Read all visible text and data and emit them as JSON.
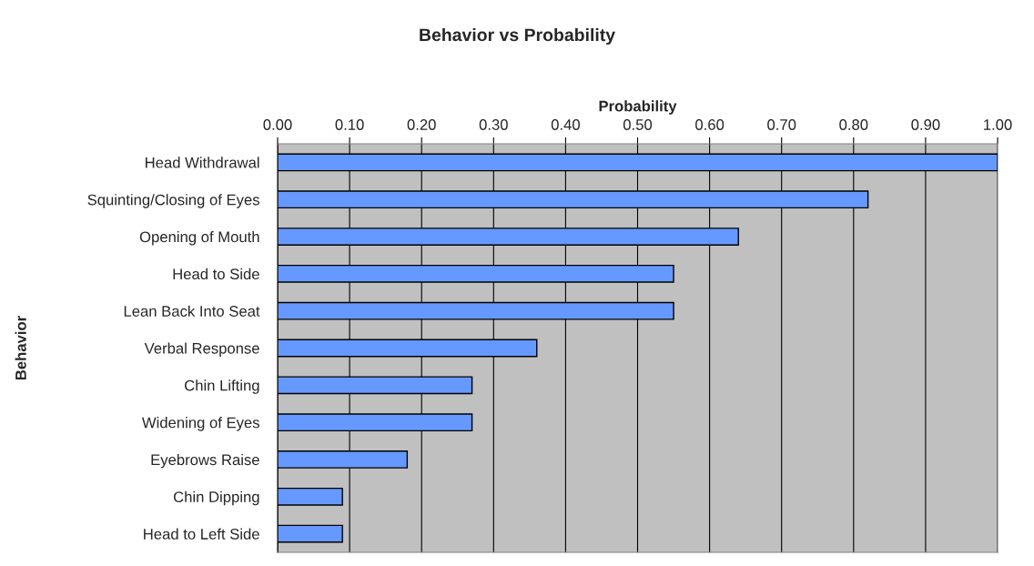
{
  "chart_data": {
    "type": "bar",
    "orientation": "horizontal",
    "title": "Behavior vs Probability",
    "xlabel": "Probability",
    "ylabel": "Behavior",
    "categories": [
      "Head Withdrawal",
      "Squinting/Closing of Eyes",
      "Opening of Mouth",
      "Head to Side",
      "Lean Back Into Seat",
      "Verbal Response",
      "Chin Lifting",
      "Widening of Eyes",
      "Eyebrows Raise",
      "Chin Dipping",
      "Head to Left Side"
    ],
    "values": [
      1.0,
      0.82,
      0.64,
      0.55,
      0.55,
      0.36,
      0.27,
      0.27,
      0.18,
      0.09,
      0.09
    ],
    "color": "#6699ff",
    "xlim": [
      0,
      1
    ],
    "xticks": [
      {
        "value": 0,
        "label": "0.00"
      },
      {
        "value": 0.1,
        "label": "0.10"
      },
      {
        "value": 0.2,
        "label": "0.20"
      },
      {
        "value": 0.3,
        "label": "0.30"
      },
      {
        "value": 0.4,
        "label": "0.40"
      },
      {
        "value": 0.5,
        "label": "0.50"
      },
      {
        "value": 0.6,
        "label": "0.60"
      },
      {
        "value": 0.7,
        "label": "0.70"
      },
      {
        "value": 0.8,
        "label": "0.80"
      },
      {
        "value": 0.9,
        "label": "0.90"
      },
      {
        "value": 1,
        "label": "1.00"
      }
    ],
    "grid": "x",
    "legend": false
  }
}
